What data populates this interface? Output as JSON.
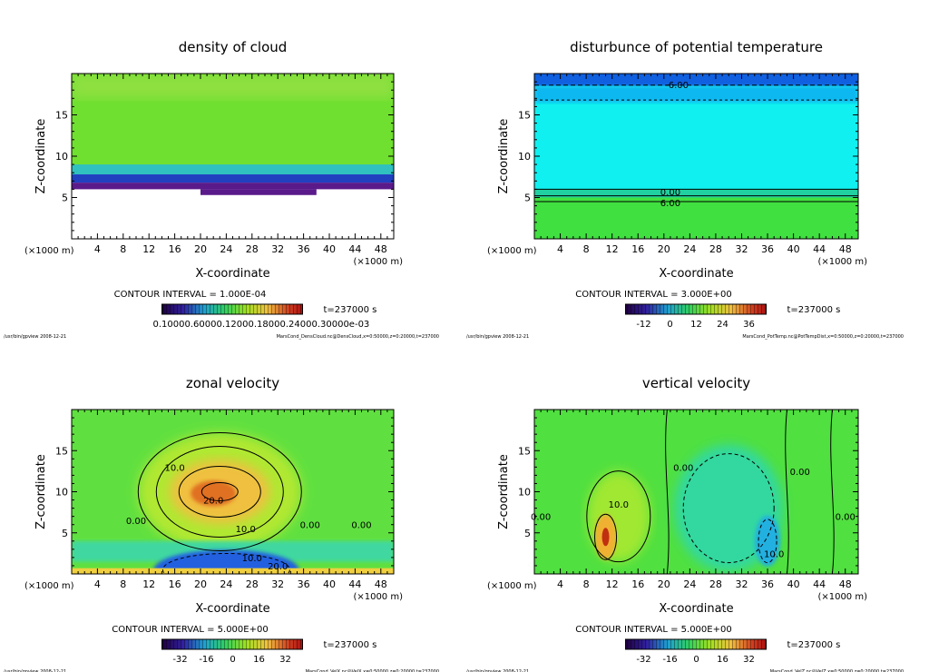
{
  "chart_data": [
    {
      "type": "heatmap",
      "title": "density of cloud",
      "xlabel": "X-coordinate",
      "ylabel": "Z-coordinate",
      "x_unit": "(×1000 m)",
      "xlim": [
        0,
        50
      ],
      "ylim": [
        0,
        20
      ],
      "xticks": [
        4,
        8,
        12,
        16,
        20,
        24,
        28,
        32,
        36,
        40,
        44,
        48
      ],
      "yticks": [
        5,
        10,
        15
      ],
      "contour_interval": "CONTOUR INTERVAL = 1.000E-04",
      "time": "t=237000 s",
      "colorbar_labels": "0.10000.60000.12000.18000.24000.30000e-03",
      "contour_labels": [],
      "footer_left": "/usr/bin/gpview  2008-12-21",
      "footer_right": "MarsCond_DensCloud.nc@DensCloud,x=0:50000,z=0:20000,t=237000"
    },
    {
      "type": "heatmap",
      "title": "disturbunce of potential temperature",
      "xlabel": "X-coordinate",
      "ylabel": "Z-coordinate",
      "x_unit": "(×1000 m)",
      "xlim": [
        0,
        50
      ],
      "ylim": [
        0,
        20
      ],
      "xticks": [
        4,
        8,
        12,
        16,
        20,
        24,
        28,
        32,
        36,
        40,
        44,
        48
      ],
      "yticks": [
        5,
        10,
        15
      ],
      "contour_interval": "CONTOUR INTERVAL = 3.000E+00",
      "time": "t=237000 s",
      "colorbar_ticks": [
        "-12",
        "0",
        "12",
        "24",
        "36"
      ],
      "contour_labels": [
        {
          "text": "-6.00",
          "x": 22,
          "z": 18.7
        },
        {
          "text": "0.00",
          "x": 21,
          "z": 5.7
        },
        {
          "text": "6.00",
          "x": 21,
          "z": 4.4
        }
      ],
      "footer_left": "/usr/bin/gpview  2008-12-21",
      "footer_right": "MarsCond_PotTemp.nc@PotTempDist,x=0:50000,z=0:20000,t=237000"
    },
    {
      "type": "heatmap",
      "title": "zonal velocity",
      "xlabel": "X-coordinate",
      "ylabel": "Z-coordinate",
      "x_unit": "(×1000 m)",
      "xlim": [
        0,
        50
      ],
      "ylim": [
        0,
        20
      ],
      "xticks": [
        4,
        8,
        12,
        16,
        20,
        24,
        28,
        32,
        36,
        40,
        44,
        48
      ],
      "yticks": [
        5,
        10,
        15
      ],
      "contour_interval": "CONTOUR INTERVAL = 5.000E+00",
      "time": "t=237000 s",
      "colorbar_ticks": [
        "-32",
        "-16",
        "0",
        "16",
        "32"
      ],
      "contour_labels": [
        {
          "text": "10.0",
          "x": 16,
          "z": 13
        },
        {
          "text": "20.0",
          "x": 22,
          "z": 9
        },
        {
          "text": "10.0",
          "x": 27,
          "z": 5.5
        },
        {
          "text": "0.00",
          "x": 10,
          "z": 6.5
        },
        {
          "text": "0.00",
          "x": 37,
          "z": 6
        },
        {
          "text": "0.00",
          "x": 45,
          "z": 6
        },
        {
          "text": "10.0",
          "x": 28,
          "z": 2
        },
        {
          "text": "20.0",
          "x": 32,
          "z": 1
        }
      ],
      "footer_left": "/usr/bin/gpview  2008-12-21",
      "footer_right": "MarsCond_VelX.nc@VelX,x=0:50000,z=0:20000,t=237000"
    },
    {
      "type": "heatmap",
      "title": "vertical velocity",
      "xlabel": "X-coordinate",
      "ylabel": "Z-coordinate",
      "x_unit": "(×1000 m)",
      "xlim": [
        0,
        50
      ],
      "ylim": [
        0,
        20
      ],
      "xticks": [
        4,
        8,
        12,
        16,
        20,
        24,
        28,
        32,
        36,
        40,
        44,
        48
      ],
      "yticks": [
        5,
        10,
        15
      ],
      "contour_interval": "CONTOUR INTERVAL = 5.000E+00",
      "time": "t=237000 s",
      "colorbar_ticks": [
        "-32",
        "-16",
        "0",
        "16",
        "32"
      ],
      "contour_labels": [
        {
          "text": "10.0",
          "x": 13,
          "z": 8.5
        },
        {
          "text": "0.00",
          "x": 23,
          "z": 13
        },
        {
          "text": "0.00",
          "x": 41,
          "z": 12.5
        },
        {
          "text": "10.0",
          "x": 37,
          "z": 2.5
        },
        {
          "text": "0.00",
          "x": 48,
          "z": 7
        },
        {
          "text": "0.00",
          "x": 1,
          "z": 7
        }
      ],
      "footer_left": "/usr/bin/gpview  2008-12-21",
      "footer_right": "MarsCond_VelZ.nc@VelZ,x=0:50000,z=0:20000,t=237000"
    }
  ]
}
